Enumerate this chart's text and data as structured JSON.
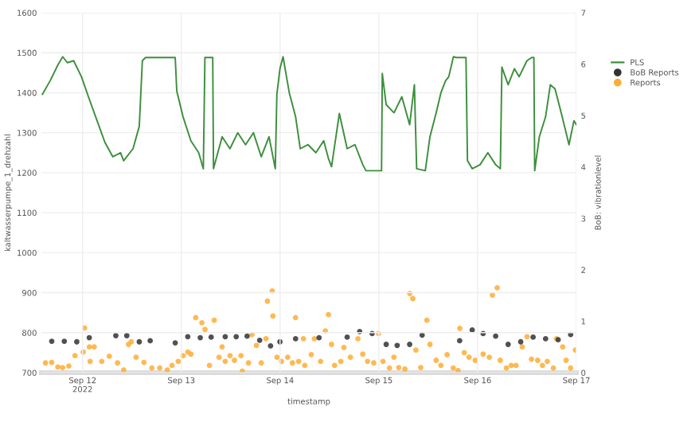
{
  "chart_data": {
    "type": "line",
    "xlabel": "timestamp",
    "ylabel": "kaltwasserpumpe_1_drehzahl",
    "y2label": "BoB: vibrationlevel",
    "xlim": [
      "2022-09-11T14:00",
      "2022-09-17T00:00"
    ],
    "xticks": [
      {
        "value": "2022-09-12",
        "label": "Sep 12\n2022"
      },
      {
        "value": "2022-09-13",
        "label": "Sep 13"
      },
      {
        "value": "2022-09-14",
        "label": "Sep 14"
      },
      {
        "value": "2022-09-15",
        "label": "Sep 15"
      },
      {
        "value": "2022-09-16",
        "label": "Sep 16"
      },
      {
        "value": "2022-09-17",
        "label": "Sep 17"
      }
    ],
    "ylim": [
      700,
      1600
    ],
    "yticks": [
      700,
      800,
      900,
      1000,
      1100,
      1200,
      1300,
      1400,
      1500,
      1600
    ],
    "y2lim": [
      0,
      7
    ],
    "y2ticks": [
      0,
      1,
      2,
      3,
      4,
      5,
      6,
      7
    ],
    "grid": true,
    "legend": "right",
    "series": [
      {
        "name": "PLS",
        "type": "line",
        "color": "#3d8f3d",
        "marker": "none",
        "line_style": "solid",
        "x": [
          "2022-09-11T14:15",
          "2022-09-11T16:08",
          "2022-09-11T18:02",
          "2022-09-11T19:11",
          "2022-09-11T20:19",
          "2022-09-11T21:50",
          "2022-09-11T23:44",
          "2022-09-12T01:38",
          "2022-09-12T03:32",
          "2022-09-12T05:26",
          "2022-09-12T07:20",
          "2022-09-12T09:14",
          "2022-09-12T09:59",
          "2022-09-12T12:16",
          "2022-09-12T13:47",
          "2022-09-12T14:32",
          "2022-09-12T15:18",
          "2022-09-12T22:31",
          "2022-09-12T22:54",
          "2022-09-13T00:25",
          "2022-09-13T02:19",
          "2022-09-13T04:13",
          "2022-09-13T05:21",
          "2022-09-13T05:44",
          "2022-09-13T07:38",
          "2022-09-13T07:49",
          "2022-09-13T09:55",
          "2022-09-13T11:49",
          "2022-09-13T13:43",
          "2022-09-13T15:37",
          "2022-09-13T17:31",
          "2022-09-13T19:25",
          "2022-09-13T21:19",
          "2022-09-13T22:50",
          "2022-09-13T23:13",
          "2022-09-13T23:58",
          "2022-09-14T00:43",
          "2022-09-14T02:14",
          "2022-09-14T03:46",
          "2022-09-14T04:54",
          "2022-09-14T06:48",
          "2022-09-14T08:42",
          "2022-09-14T10:36",
          "2022-09-14T11:44",
          "2022-09-14T12:30",
          "2022-09-14T14:24",
          "2022-09-14T16:18",
          "2022-09-14T18:12",
          "2022-09-14T20:06",
          "2022-09-14T20:52",
          "2022-09-15T00:39",
          "2022-09-15T00:50",
          "2022-09-15T01:47",
          "2022-09-15T03:41",
          "2022-09-15T05:35",
          "2022-09-15T07:29",
          "2022-09-15T08:38",
          "2022-09-15T09:11",
          "2022-09-15T11:17",
          "2022-09-15T12:25",
          "2022-09-15T13:56",
          "2022-09-15T15:05",
          "2022-09-15T16:13",
          "2022-09-15T16:59",
          "2022-09-15T18:07",
          "2022-09-15T18:53",
          "2022-09-15T21:10",
          "2022-09-15T21:32",
          "2022-09-15T22:41",
          "2022-09-16T00:35",
          "2022-09-16T02:29",
          "2022-09-16T04:23",
          "2022-09-16T05:31",
          "2022-09-16T05:54",
          "2022-09-16T07:25",
          "2022-09-16T08:56",
          "2022-09-16T10:05",
          "2022-09-16T11:59",
          "2022-09-16T13:07",
          "2022-09-16T13:40",
          "2022-09-16T13:52",
          "2022-09-16T15:00",
          "2022-09-16T16:31",
          "2022-09-16T17:40",
          "2022-09-16T18:48",
          "2022-09-16T20:18",
          "2022-09-16T21:30",
          "2022-09-16T22:12",
          "2022-09-16T23:24",
          "2022-09-17T00:00"
        ],
        "values": [
          1396,
          1430,
          1470,
          1490,
          1475,
          1480,
          1440,
          1384,
          1330,
          1276,
          1240,
          1250,
          1230,
          1260,
          1316,
          1480,
          1488,
          1488,
          1404,
          1340,
          1280,
          1250,
          1210,
          1488,
          1488,
          1210,
          1290,
          1260,
          1300,
          1270,
          1300,
          1240,
          1290,
          1210,
          1396,
          1460,
          1490,
          1400,
          1340,
          1260,
          1270,
          1250,
          1280,
          1236,
          1215,
          1348,
          1260,
          1270,
          1220,
          1205,
          1205,
          1448,
          1370,
          1350,
          1390,
          1320,
          1420,
          1210,
          1205,
          1290,
          1350,
          1400,
          1430,
          1440,
          1490,
          1488,
          1488,
          1230,
          1210,
          1220,
          1250,
          1220,
          1210,
          1464,
          1420,
          1460,
          1440,
          1480,
          1488,
          1488,
          1205,
          1290,
          1340,
          1420,
          1410,
          1350,
          1300,
          1270,
          1330,
          1320
        ]
      },
      {
        "name": "BoB Reports",
        "type": "scatter",
        "axis": "y2",
        "color": "#333333",
        "marker": "circle",
        "x": [
          "2022-09-11T16:31",
          "2022-09-11T19:34",
          "2022-09-11T22:36",
          "2022-09-12T01:38",
          "2022-09-12T08:05",
          "2022-09-12T10:45",
          "2022-09-12T13:47",
          "2022-09-12T16:26",
          "2022-09-12T22:31",
          "2022-09-13T01:34",
          "2022-09-13T04:36",
          "2022-09-13T07:15",
          "2022-09-13T10:40",
          "2022-09-13T13:20",
          "2022-09-13T15:59",
          "2022-09-13T19:02",
          "2022-09-13T21:41",
          "2022-09-13T23:58",
          "2022-09-14T03:46",
          "2022-09-14T09:28",
          "2022-09-14T16:18",
          "2022-09-14T19:20",
          "2022-09-14T22:22",
          "2022-09-15T01:47",
          "2022-09-15T04:27",
          "2022-09-15T07:29",
          "2022-09-15T10:31",
          "2022-09-15T19:38",
          "2022-09-15T22:41",
          "2022-09-16T01:20",
          "2022-09-16T04:23",
          "2022-09-16T07:25",
          "2022-09-16T10:28",
          "2022-09-16T13:29",
          "2022-09-16T16:31",
          "2022-09-16T19:34",
          "2022-09-16T22:36"
        ],
        "values": [
          0.61,
          0.61,
          0.6,
          0.68,
          0.72,
          0.72,
          0.6,
          0.62,
          0.58,
          0.7,
          0.68,
          0.69,
          0.7,
          0.7,
          0.71,
          0.63,
          0.52,
          0.6,
          0.66,
          0.68,
          0.69,
          0.8,
          0.76,
          0.55,
          0.53,
          0.55,
          0.73,
          0.62,
          0.83,
          0.76,
          0.71,
          0.55,
          0.6,
          0.69,
          0.66,
          0.64,
          0.74
        ]
      },
      {
        "name": "Reports",
        "type": "scatter",
        "axis": "y2",
        "color": "#ffad33",
        "marker": "circle",
        "x": [
          "2022-09-11T15:00",
          "2022-09-11T16:30",
          "2022-09-11T18:00",
          "2022-09-11T19:10",
          "2022-09-11T20:40",
          "2022-09-11T22:10",
          "2022-09-12T00:10",
          "2022-09-12T00:30",
          "2022-09-12T01:40",
          "2022-09-12T01:50",
          "2022-09-12T02:50",
          "2022-09-12T04:40",
          "2022-09-12T06:30",
          "2022-09-12T08:30",
          "2022-09-12T10:00",
          "2022-09-12T11:10",
          "2022-09-12T11:50",
          "2022-09-12T13:00",
          "2022-09-12T14:55",
          "2022-09-12T16:50",
          "2022-09-12T18:45",
          "2022-09-12T20:35",
          "2022-09-12T21:45",
          "2022-09-12T23:15",
          "2022-09-13T00:25",
          "2022-09-13T01:35",
          "2022-09-13T02:20",
          "2022-09-13T03:30",
          "2022-09-13T05:00",
          "2022-09-13T05:45",
          "2022-09-13T06:50",
          "2022-09-13T08:00",
          "2022-09-13T09:10",
          "2022-09-13T09:55",
          "2022-09-13T10:40",
          "2022-09-13T11:50",
          "2022-09-13T12:55",
          "2022-09-13T14:30",
          "2022-09-13T14:50",
          "2022-09-13T16:20",
          "2022-09-13T17:10",
          "2022-09-13T18:15",
          "2022-09-13T19:25",
          "2022-09-13T20:35",
          "2022-09-13T20:55",
          "2022-09-13T22:05",
          "2022-09-13T22:15",
          "2022-09-13T23:15",
          "2022-09-14T00:20",
          "2022-09-14T01:50",
          "2022-09-14T03:00",
          "2022-09-14T03:45",
          "2022-09-14T04:30",
          "2022-09-14T05:40",
          "2022-09-14T06:00",
          "2022-09-14T07:35",
          "2022-09-14T08:20",
          "2022-09-14T09:50",
          "2022-09-14T11:00",
          "2022-09-14T11:45",
          "2022-09-14T12:30",
          "2022-09-14T13:15",
          "2022-09-14T14:45",
          "2022-09-14T15:30",
          "2022-09-14T17:05",
          "2022-09-14T18:55",
          "2022-09-14T20:05",
          "2022-09-14T21:15",
          "2022-09-14T22:45",
          "2022-09-14T23:55",
          "2022-09-15T01:00",
          "2022-09-15T02:35",
          "2022-09-15T03:40",
          "2022-09-15T04:50",
          "2022-09-15T06:20",
          "2022-09-15T07:30",
          "2022-09-15T08:15",
          "2022-09-15T09:00",
          "2022-09-15T10:10",
          "2022-09-15T11:40",
          "2022-09-15T12:25",
          "2022-09-15T13:55",
          "2022-09-15T15:05",
          "2022-09-15T16:35",
          "2022-09-15T18:05",
          "2022-09-15T19:15",
          "2022-09-15T19:40",
          "2022-09-15T20:45",
          "2022-09-15T21:55",
          "2022-09-15T23:25",
          "2022-09-16T01:20",
          "2022-09-16T02:50",
          "2022-09-16T03:35",
          "2022-09-16T04:45",
          "2022-09-16T05:30",
          "2022-09-16T07:00",
          "2022-09-16T08:10",
          "2022-09-16T09:20",
          "2022-09-16T10:50",
          "2022-09-16T12:00",
          "2022-09-16T13:05",
          "2022-09-16T14:35",
          "2022-09-16T15:45",
          "2022-09-16T16:55",
          "2022-09-16T18:25",
          "2022-09-16T19:10",
          "2022-09-16T20:40",
          "2022-09-16T21:30",
          "2022-09-16T22:35",
          "2022-09-16T23:45"
        ],
        "values": [
          0.19,
          0.2,
          0.11,
          0.1,
          0.13,
          0.33,
          0.4,
          0.87,
          0.5,
          0.22,
          0.5,
          0.22,
          0.32,
          0.19,
          0.05,
          0.55,
          0.6,
          0.3,
          0.2,
          0.09,
          0.09,
          0.05,
          0.14,
          0.22,
          0.33,
          0.4,
          0.36,
          1.07,
          0.97,
          0.84,
          0.14,
          1.02,
          0.3,
          0.5,
          0.22,
          0.33,
          0.24,
          0.33,
          0.03,
          0.19,
          0.74,
          0.53,
          0.19,
          0.66,
          1.39,
          1.59,
          1.1,
          0.3,
          0.22,
          0.3,
          0.19,
          1.07,
          0.22,
          0.66,
          0.14,
          0.35,
          0.66,
          0.22,
          0.81,
          1.13,
          0.55,
          0.14,
          0.22,
          0.49,
          0.3,
          0.66,
          0.36,
          0.22,
          0.19,
          0.76,
          0.22,
          0.09,
          0.3,
          0.1,
          0.07,
          1.54,
          1.44,
          0.44,
          0.1,
          1.02,
          0.55,
          0.24,
          0.14,
          0.35,
          0.09,
          0.04,
          0.86,
          0.39,
          0.3,
          0.24,
          0.36,
          0.3,
          1.51,
          1.65,
          0.24,
          0.09,
          0.14,
          0.14,
          0.5,
          0.7,
          0.26,
          0.24,
          0.14,
          0.22,
          0.09,
          0.66,
          0.5,
          0.24,
          0.09,
          0.44
        ]
      }
    ]
  }
}
